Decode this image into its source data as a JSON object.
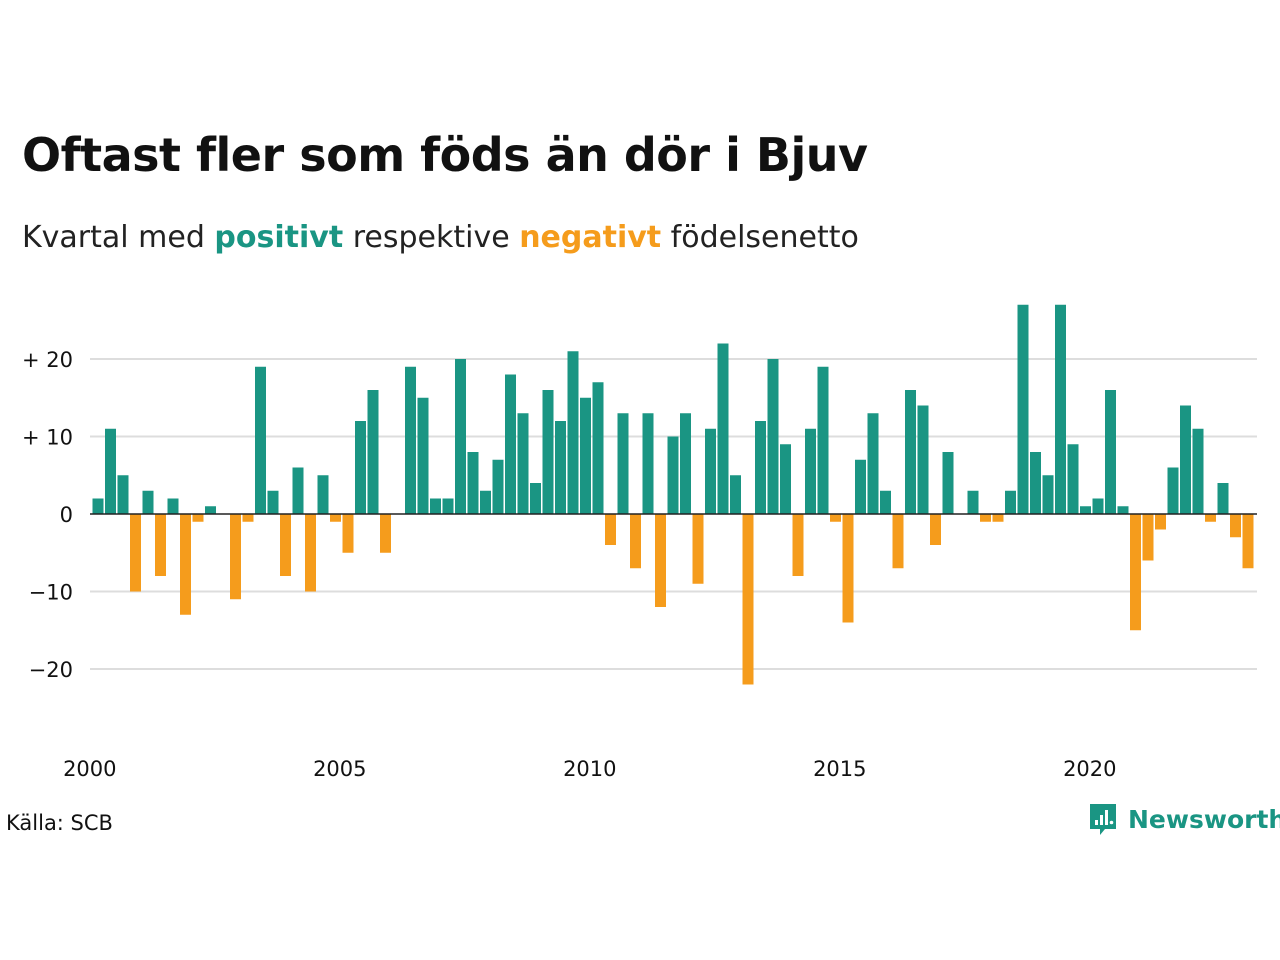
{
  "colors": {
    "positive": "#1a9583",
    "negative": "#f59c1c",
    "grid": "#dddddd",
    "zero_line": "#222222",
    "text": "#111111"
  },
  "header": {
    "title": "Oftast fler som föds än dör i Bjuv",
    "subtitle_before": "Kvartal med ",
    "subtitle_positive": "positivt",
    "subtitle_middle": " respektive ",
    "subtitle_negative": "negativt",
    "subtitle_after": " födelsenetto"
  },
  "footer": {
    "source": "Källa: SCB",
    "brand": "Newsworthy",
    "brand_icon": "newsworthy-logo-icon"
  },
  "chart_data": {
    "type": "bar",
    "title": "Oftast fler som föds än dör i Bjuv",
    "subtitle": "Kvartal med positivt respektive negativt födelsenetto",
    "x_start": "2000-Q1",
    "frequency": "quarterly",
    "xticks": [
      {
        "label": "2000",
        "year": 2000
      },
      {
        "label": "2005",
        "year": 2005
      },
      {
        "label": "2010",
        "year": 2010
      },
      {
        "label": "2015",
        "year": 2015
      },
      {
        "label": "2020",
        "year": 2020
      }
    ],
    "yticks": [
      {
        "label": "+ 20",
        "value": 20
      },
      {
        "label": "+ 10",
        "value": 10
      },
      {
        "label": "0",
        "value": 0
      },
      {
        "label": "−10",
        "value": -10
      },
      {
        "label": "−20",
        "value": -20
      }
    ],
    "ylim": [
      -29,
      27
    ],
    "grid": true,
    "values": [
      2,
      11,
      5,
      -10,
      3,
      -8,
      2,
      -13,
      -1,
      1,
      0,
      -11,
      -1,
      19,
      3,
      -8,
      6,
      -10,
      5,
      -1,
      -5,
      12,
      16,
      -5,
      0,
      19,
      15,
      2,
      2,
      20,
      8,
      3,
      7,
      18,
      13,
      4,
      16,
      12,
      21,
      15,
      17,
      -4,
      13,
      -7,
      13,
      -12,
      10,
      13,
      -9,
      11,
      22,
      5,
      -22,
      12,
      20,
      9,
      -8,
      11,
      19,
      -1,
      -14,
      7,
      13,
      3,
      -7,
      16,
      14,
      -4,
      8,
      0,
      3,
      -1,
      -1,
      3,
      27,
      8,
      5,
      27,
      9,
      1,
      2,
      16,
      1,
      -15,
      -6,
      -2,
      6,
      14,
      11,
      -1,
      4,
      -3,
      -7
    ]
  }
}
